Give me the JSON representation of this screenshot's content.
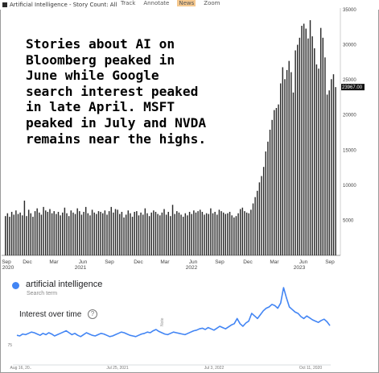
{
  "legend": {
    "label": "Artificial Intelligence - Story Count: All"
  },
  "toolbar": {
    "items": [
      "Track",
      "Annotate",
      "News",
      "Zoom"
    ]
  },
  "annotation": {
    "text": "Stories about AI on\nBloomberg peaked in\nJune while Google\nsearch interest peaked\nin late April. MSFT\npeaked in July and NVDA\nremains near the highs."
  },
  "trends": {
    "term": "artificial intelligence",
    "term_sub": "Search term",
    "title": "Interest over time",
    "help_icon": "question-circle-icon",
    "y_tick": "75",
    "x_ticks": [
      "Aug 16, 20..",
      "Jul 25, 2021",
      "Jul 3, 2022",
      "Oct 11, 2020"
    ],
    "note": "Note",
    "line_color": "#4285f4"
  },
  "chart_data": {
    "type": "bar",
    "title": "Artificial Intelligence - Story Count: All",
    "ylim": [
      0,
      35000
    ],
    "yticks": [
      "5000",
      "10000",
      "15000",
      "20000",
      "25000",
      "30000",
      "35000"
    ],
    "last_value_label": "23967.00",
    "x_tick_labels": [
      "Sep",
      "Dec",
      "Mar",
      "Jun",
      "Sep",
      "Dec",
      "Mar",
      "Jun",
      "Sep",
      "Dec",
      "Mar",
      "Jun",
      "Sep"
    ],
    "year_labels": [
      "2020",
      "2021",
      "2022",
      "2023"
    ],
    "values": [
      5600,
      6000,
      5500,
      6200,
      5800,
      6400,
      5900,
      6100,
      5700,
      7800,
      5600,
      6500,
      6000,
      5500,
      6300,
      6700,
      6100,
      5800,
      6900,
      6400,
      6200,
      6600,
      6000,
      6300,
      5900,
      6200,
      5700,
      6100,
      6800,
      6000,
      5600,
      6400,
      6100,
      5900,
      6700,
      6300,
      5800,
      6200,
      6900,
      6000,
      5700,
      6500,
      6100,
      5900,
      6300,
      6200,
      6000,
      6400,
      5800,
      6300,
      6900,
      6100,
      6600,
      6500,
      5900,
      6200,
      5400,
      5800,
      6400,
      6000,
      5500,
      6200,
      6300,
      5700,
      6100,
      5800,
      6700,
      6000,
      5600,
      6100,
      6400,
      6200,
      5900,
      5700,
      6100,
      6600,
      5800,
      6200,
      5600,
      7200,
      5900,
      6300,
      6100,
      5800,
      5500,
      6000,
      5700,
      6200,
      5900,
      6400,
      6100,
      6300,
      6500,
      6200,
      5800,
      6000,
      5900,
      6700,
      6000,
      6200,
      5800,
      6500,
      6300,
      6100,
      5900,
      6000,
      6200,
      5700,
      5400,
      5600,
      6000,
      6600,
      6800,
      6300,
      6100,
      6000,
      6500,
      7400,
      8300,
      9200,
      10400,
      11300,
      12600,
      14800,
      16200,
      17900,
      19300,
      20700,
      21000,
      21500,
      24500,
      26800,
      25100,
      26400,
      27700,
      26100,
      23200,
      29200,
      30000,
      31000,
      32700,
      33000,
      32300,
      30900,
      33500,
      31200,
      29500,
      27200,
      26600,
      32400,
      31000,
      28200,
      22900,
      23500,
      25100,
      25800,
      23967
    ]
  },
  "trends_data": {
    "type": "line",
    "values": [
      26,
      25,
      28,
      27,
      29,
      31,
      30,
      28,
      26,
      29,
      27,
      30,
      28,
      25,
      27,
      29,
      31,
      33,
      30,
      27,
      29,
      26,
      24,
      27,
      30,
      28,
      26,
      25,
      27,
      29,
      28,
      26,
      24,
      25,
      27,
      29,
      31,
      30,
      28,
      26,
      25,
      24,
      26,
      28,
      29,
      31,
      30,
      33,
      35,
      32,
      30,
      28,
      27,
      29,
      31,
      30,
      29,
      28,
      27,
      29,
      31,
      33,
      34,
      36,
      37,
      35,
      38,
      36,
      34,
      37,
      40,
      38,
      36,
      39,
      42,
      44,
      52,
      44,
      40,
      45,
      48,
      60,
      56,
      52,
      58,
      64,
      68,
      70,
      74,
      72,
      68,
      76,
      100,
      84,
      70,
      66,
      62,
      60,
      55,
      52,
      56,
      53,
      50,
      48,
      46,
      49,
      51,
      47,
      41
    ]
  }
}
